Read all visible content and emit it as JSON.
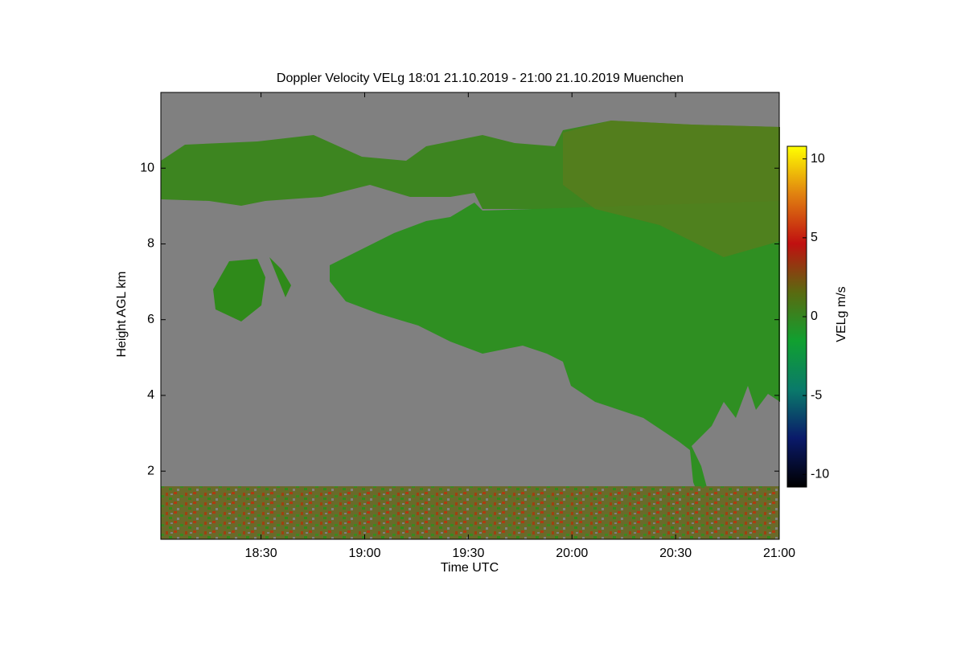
{
  "chart_data": {
    "type": "heatmap",
    "title": "Doppler Velocity VELg   18:01 21.10.2019 - 21:00 21.10.2019 Muenchen",
    "x_label": "Time UTC",
    "y_label": "Height AGL km",
    "colorbar_label": "VELg m/s",
    "xlim": [
      18.0167,
      21
    ],
    "xticks": [
      {
        "value": 18.5,
        "label": "18:30"
      },
      {
        "value": 19,
        "label": "19:00"
      },
      {
        "value": 19.5,
        "label": "19:30"
      },
      {
        "value": 20,
        "label": "20:00"
      },
      {
        "value": 20.5,
        "label": "20:30"
      },
      {
        "value": 21,
        "label": "21:00"
      }
    ],
    "ylim": [
      0.2,
      12
    ],
    "yticks": [
      2,
      4,
      6,
      8,
      10
    ],
    "clim": [
      -10.8,
      10.8
    ],
    "cticks": [
      -10,
      -5,
      0,
      5,
      10
    ],
    "colorscale": [
      "#000000",
      "#0a1a6a",
      "#0a7a6a",
      "#10a030",
      "#5a6a10",
      "#c01010",
      "#e08010",
      "#ffff00"
    ],
    "background": "#808080"
  }
}
